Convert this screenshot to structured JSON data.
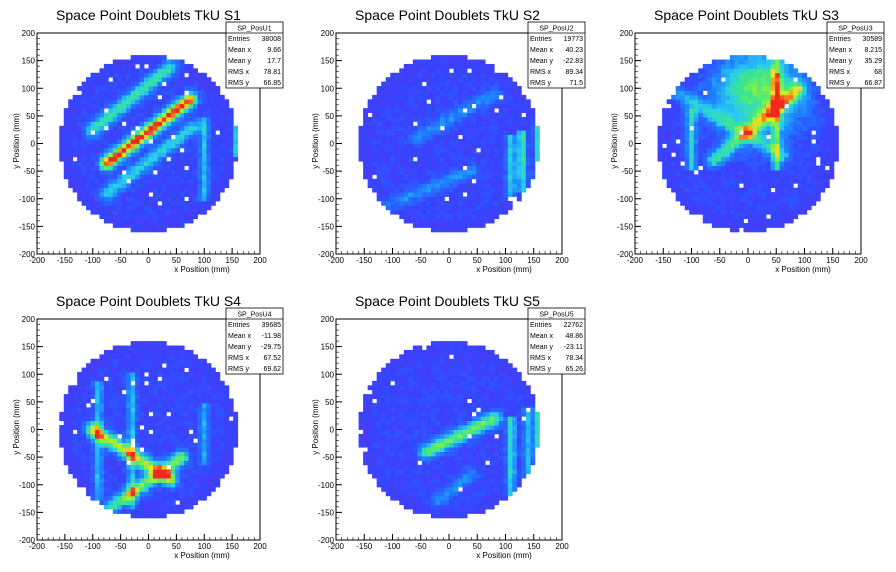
{
  "chart_data": [
    {
      "type": "heatmap",
      "title": "Space Point Doublets TkU S1",
      "xlabel": "x Position (mm)",
      "ylabel": "y Position (mm)",
      "xlim": [
        -200,
        200
      ],
      "ylim": [
        -200,
        200
      ],
      "x_ticks": [
        -200,
        -150,
        -100,
        -50,
        0,
        50,
        100,
        150,
        200
      ],
      "y_ticks": [
        200,
        150,
        100,
        50,
        0,
        -50,
        -100,
        -150,
        -200
      ],
      "stats": {
        "name": "SP_PosU1",
        "rows": [
          {
            "label": "Entries",
            "value": "38008"
          },
          {
            "label": "Mean x",
            "value": "9.66"
          },
          {
            "label": "Mean y",
            "value": "17.7"
          },
          {
            "label": "RMS x",
            "value": "78.81"
          },
          {
            "label": "RMS y",
            "value": "66.85"
          }
        ]
      },
      "features": [
        {
          "kind": "band",
          "from": [
            -75,
            -35
          ],
          "to": [
            75,
            80
          ],
          "peak": 0.85
        },
        {
          "kind": "band",
          "from": [
            -100,
            25
          ],
          "to": [
            40,
            140
          ],
          "peak": 0.45
        },
        {
          "kind": "band",
          "from": [
            -75,
            -90
          ],
          "to": [
            80,
            30
          ],
          "peak": 0.35
        },
        {
          "kind": "vline",
          "x": 160,
          "y": [
            -20,
            40
          ],
          "peak": 0.5
        },
        {
          "kind": "vline",
          "x": 100,
          "y": [
            -100,
            40
          ],
          "peak": 0.3
        }
      ]
    },
    {
      "type": "heatmap",
      "title": "Space Point Doublets TkU S2",
      "xlabel": "x Position (mm)",
      "ylabel": "y Position (mm)",
      "xlim": [
        -200,
        200
      ],
      "ylim": [
        -200,
        200
      ],
      "x_ticks": [
        -200,
        -150,
        -100,
        -50,
        0,
        50,
        100,
        150,
        200
      ],
      "y_ticks": [
        200,
        150,
        100,
        50,
        0,
        -50,
        -100,
        -150,
        -200
      ],
      "stats": {
        "name": "SP_PosU2",
        "rows": [
          {
            "label": "Entries",
            "value": "19773"
          },
          {
            "label": "Mean x",
            "value": "40.23"
          },
          {
            "label": "Mean y",
            "value": "-22.83"
          },
          {
            "label": "RMS x",
            "value": "89.34"
          },
          {
            "label": "RMS y",
            "value": "71.5"
          }
        ]
      },
      "features": [
        {
          "kind": "vline",
          "x": 160,
          "y": [
            -60,
            40
          ],
          "peak": 0.6
        },
        {
          "kind": "vline",
          "x": 130,
          "y": [
            -80,
            20
          ],
          "peak": 0.45
        },
        {
          "kind": "vline",
          "x": 110,
          "y": [
            -100,
            10
          ],
          "peak": 0.35
        },
        {
          "kind": "band",
          "from": [
            -60,
            10
          ],
          "to": [
            80,
            90
          ],
          "peak": 0.2
        },
        {
          "kind": "band",
          "from": [
            -130,
            -120
          ],
          "to": [
            40,
            -50
          ],
          "peak": 0.2
        }
      ]
    },
    {
      "type": "heatmap",
      "title": "Space Point Doublets TkU S3",
      "xlabel": "x Position (mm)",
      "ylabel": "y Position (mm)",
      "xlim": [
        -200,
        200
      ],
      "ylim": [
        -200,
        200
      ],
      "x_ticks": [
        -200,
        -150,
        -100,
        -50,
        0,
        50,
        100,
        150,
        200
      ],
      "y_ticks": [
        200,
        150,
        100,
        50,
        0,
        -50,
        -100,
        -150,
        -200
      ],
      "stats": {
        "name": "SP_PosU3",
        "rows": [
          {
            "label": "Entries",
            "value": "30589"
          },
          {
            "label": "Mean x",
            "value": "8.215"
          },
          {
            "label": "Mean y",
            "value": "35.29"
          },
          {
            "label": "RMS x",
            "value": "68"
          },
          {
            "label": "RMS y",
            "value": "66.87"
          }
        ]
      },
      "features": [
        {
          "kind": "blob",
          "center": [
            20,
            100
          ],
          "radius": 55,
          "peak": 0.55
        },
        {
          "kind": "band",
          "from": [
            -60,
            -30
          ],
          "to": [
            90,
            100
          ],
          "peak": 0.45
        },
        {
          "kind": "vline",
          "x": 50,
          "y": [
            -40,
            150
          ],
          "peak": 0.4
        },
        {
          "kind": "vline",
          "x": -100,
          "y": [
            -40,
            60
          ],
          "peak": 0.35
        },
        {
          "kind": "band",
          "from": [
            -140,
            100
          ],
          "to": [
            60,
            -20
          ],
          "peak": 0.3
        }
      ]
    },
    {
      "type": "heatmap",
      "title": "Space Point Doublets TkU S4",
      "xlabel": "x Position (mm)",
      "ylabel": "y Position (mm)",
      "xlim": [
        -200,
        200
      ],
      "ylim": [
        -200,
        200
      ],
      "x_ticks": [
        -200,
        -150,
        -100,
        -50,
        0,
        50,
        100,
        150,
        200
      ],
      "y_ticks": [
        200,
        150,
        100,
        50,
        0,
        -50,
        -100,
        -150,
        -200
      ],
      "stats": {
        "name": "SP_PosU4",
        "rows": [
          {
            "label": "Entries",
            "value": "39685"
          },
          {
            "label": "Mean x",
            "value": "-11.98"
          },
          {
            "label": "Mean y",
            "value": "-29.75"
          },
          {
            "label": "RMS x",
            "value": "67.52"
          },
          {
            "label": "RMS y",
            "value": "69.62"
          }
        ]
      },
      "features": [
        {
          "kind": "band",
          "from": [
            -100,
            0
          ],
          "to": [
            40,
            -90
          ],
          "peak": 0.65
        },
        {
          "kind": "band",
          "from": [
            -80,
            -150
          ],
          "to": [
            60,
            -50
          ],
          "peak": 0.55
        },
        {
          "kind": "vline",
          "x": -90,
          "y": [
            -120,
            80
          ],
          "peak": 0.3
        },
        {
          "kind": "vline",
          "x": -30,
          "y": [
            -140,
            100
          ],
          "peak": 0.3
        },
        {
          "kind": "vline",
          "x": 100,
          "y": [
            -60,
            40
          ],
          "peak": 0.25
        }
      ]
    },
    {
      "type": "heatmap",
      "title": "Space Point Doublets TkU S5",
      "xlabel": "x Position (mm)",
      "ylabel": "y Position (mm)",
      "xlim": [
        -200,
        200
      ],
      "ylim": [
        -200,
        200
      ],
      "x_ticks": [
        -200,
        -150,
        -100,
        -50,
        0,
        50,
        100,
        150,
        200
      ],
      "y_ticks": [
        200,
        150,
        100,
        50,
        0,
        -50,
        -100,
        -150,
        -200
      ],
      "stats": {
        "name": "SP_PosU5",
        "rows": [
          {
            "label": "Entries",
            "value": "22762"
          },
          {
            "label": "Mean x",
            "value": "48.86"
          },
          {
            "label": "Mean y",
            "value": "-23.11"
          },
          {
            "label": "RMS x",
            "value": "78.34"
          },
          {
            "label": "RMS y",
            "value": "65.26"
          }
        ]
      },
      "features": [
        {
          "kind": "band",
          "from": [
            -40,
            -40
          ],
          "to": [
            80,
            20
          ],
          "peak": 0.55
        },
        {
          "kind": "vline",
          "x": 160,
          "y": [
            -40,
            40
          ],
          "peak": 0.6
        },
        {
          "kind": "vline",
          "x": 110,
          "y": [
            -110,
            20
          ],
          "peak": 0.4
        },
        {
          "kind": "vline",
          "x": 140,
          "y": [
            -100,
            30
          ],
          "peak": 0.35
        },
        {
          "kind": "band",
          "from": [
            -20,
            -130
          ],
          "to": [
            40,
            -80
          ],
          "peak": 0.2
        }
      ]
    }
  ]
}
